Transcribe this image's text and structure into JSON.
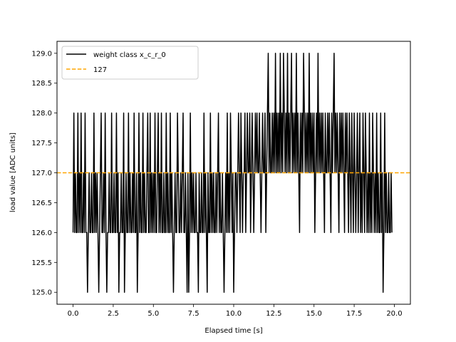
{
  "chart_data": {
    "type": "line",
    "xlabel": "Elapsed time [s]",
    "ylabel": "load value [ADC units]",
    "xlim": [
      -1.0,
      21.0
    ],
    "ylim": [
      124.8,
      129.2
    ],
    "x_ticks": [
      0.0,
      2.5,
      5.0,
      7.5,
      10.0,
      12.5,
      15.0,
      17.5,
      20.0
    ],
    "x_tick_labels": [
      "0.0",
      "2.5",
      "5.0",
      "7.5",
      "10.0",
      "12.5",
      "15.0",
      "17.5",
      "20.0"
    ],
    "y_ticks": [
      125.0,
      125.5,
      126.0,
      126.5,
      127.0,
      127.5,
      128.0,
      128.5,
      129.0
    ],
    "y_tick_labels": [
      "125.0",
      "125.5",
      "126.0",
      "126.5",
      "127.0",
      "127.5",
      "128.0",
      "128.5",
      "129.0"
    ],
    "grid": false,
    "legend_position": "top-left",
    "legend": [
      {
        "label": "weight class x_c_r_0",
        "style": "solid",
        "color": "#000000"
      },
      {
        "label": "127",
        "style": "dashed",
        "color": "#ffa500"
      }
    ],
    "reference_line": {
      "y": 127.0,
      "color": "#ffa500"
    },
    "series": [
      {
        "name": "weight class x_c_r_0",
        "color": "#000000",
        "t_start": 0.0,
        "t_step": 0.05,
        "values": [
          126,
          128,
          126,
          127,
          126,
          126,
          128,
          126,
          127,
          126,
          128,
          126,
          126,
          127,
          126,
          128,
          126,
          126,
          125,
          126,
          127,
          126,
          126,
          127,
          126,
          126,
          128,
          126,
          127,
          126,
          127,
          126,
          125,
          126,
          127,
          128,
          126,
          126,
          127,
          126,
          128,
          126,
          125,
          126,
          126,
          127,
          126,
          126,
          128,
          126,
          126,
          127,
          126,
          126,
          128,
          126,
          127,
          125,
          126,
          126,
          127,
          126,
          126,
          128,
          125,
          126,
          127,
          126,
          126,
          128,
          126,
          127,
          126,
          126,
          127,
          126,
          128,
          126,
          126,
          127,
          125,
          126,
          128,
          126,
          127,
          126,
          126,
          128,
          126,
          127,
          126,
          126,
          127,
          128,
          126,
          126,
          128,
          126,
          127,
          126,
          127,
          126,
          128,
          126,
          126,
          127,
          128,
          126,
          127,
          126,
          128,
          126,
          126,
          127,
          126,
          126,
          128,
          126,
          127,
          126,
          126,
          128,
          126,
          127,
          126,
          125,
          126,
          127,
          126,
          126,
          128,
          127,
          126,
          126,
          127,
          126,
          127,
          128,
          126,
          126,
          127,
          126,
          125,
          127,
          125,
          126,
          128,
          126,
          127,
          126,
          127,
          126,
          126,
          127,
          126,
          126,
          125,
          127,
          126,
          126,
          127,
          126,
          126,
          128,
          126,
          127,
          126,
          125,
          127,
          126,
          126,
          128,
          126,
          127,
          126,
          127,
          126,
          126,
          127,
          126,
          127,
          128,
          126,
          127,
          126,
          126,
          127,
          126,
          125,
          126,
          127,
          126,
          128,
          126,
          127,
          126,
          128,
          127,
          126,
          127,
          125,
          126,
          127,
          127,
          126,
          127,
          128,
          127,
          126,
          128,
          127,
          126,
          127,
          127,
          128,
          126,
          127,
          128,
          127,
          127,
          128,
          126,
          127,
          128,
          127,
          126,
          127,
          128,
          127,
          128,
          127,
          127,
          128,
          127,
          126,
          127,
          128,
          127,
          127,
          128,
          126,
          127,
          128,
          129,
          127,
          128,
          127,
          127,
          128,
          127,
          128,
          127,
          129,
          127,
          128,
          127,
          128,
          127,
          129,
          127,
          128,
          127,
          129,
          128,
          127,
          128,
          127,
          129,
          127,
          128,
          127,
          128,
          129,
          127,
          128,
          127,
          128,
          127,
          129,
          127,
          128,
          127,
          126,
          128,
          127,
          128,
          127,
          129,
          128,
          127,
          128,
          127,
          128,
          127,
          129,
          127,
          128,
          127,
          128,
          127,
          128,
          126,
          127,
          128,
          127,
          129,
          127,
          128,
          127,
          128,
          127,
          128,
          127,
          126,
          128,
          127,
          127,
          128,
          127,
          128,
          127,
          126,
          128,
          127,
          128,
          129,
          127,
          128,
          127,
          128,
          127,
          126,
          128,
          127,
          128,
          127,
          128,
          127,
          126,
          128,
          127,
          128,
          127,
          126,
          128,
          127,
          126,
          128,
          127,
          126,
          128,
          127,
          126,
          127,
          128,
          126,
          127,
          128,
          126,
          127,
          126,
          128,
          127,
          126,
          128,
          127,
          126,
          127,
          126,
          128,
          126,
          127,
          126,
          128,
          127,
          126,
          127,
          126,
          128,
          126,
          127,
          126,
          126,
          128,
          126,
          127,
          125,
          126,
          128,
          126,
          127,
          126,
          126,
          127,
          126,
          126,
          127,
          126
        ]
      }
    ]
  }
}
